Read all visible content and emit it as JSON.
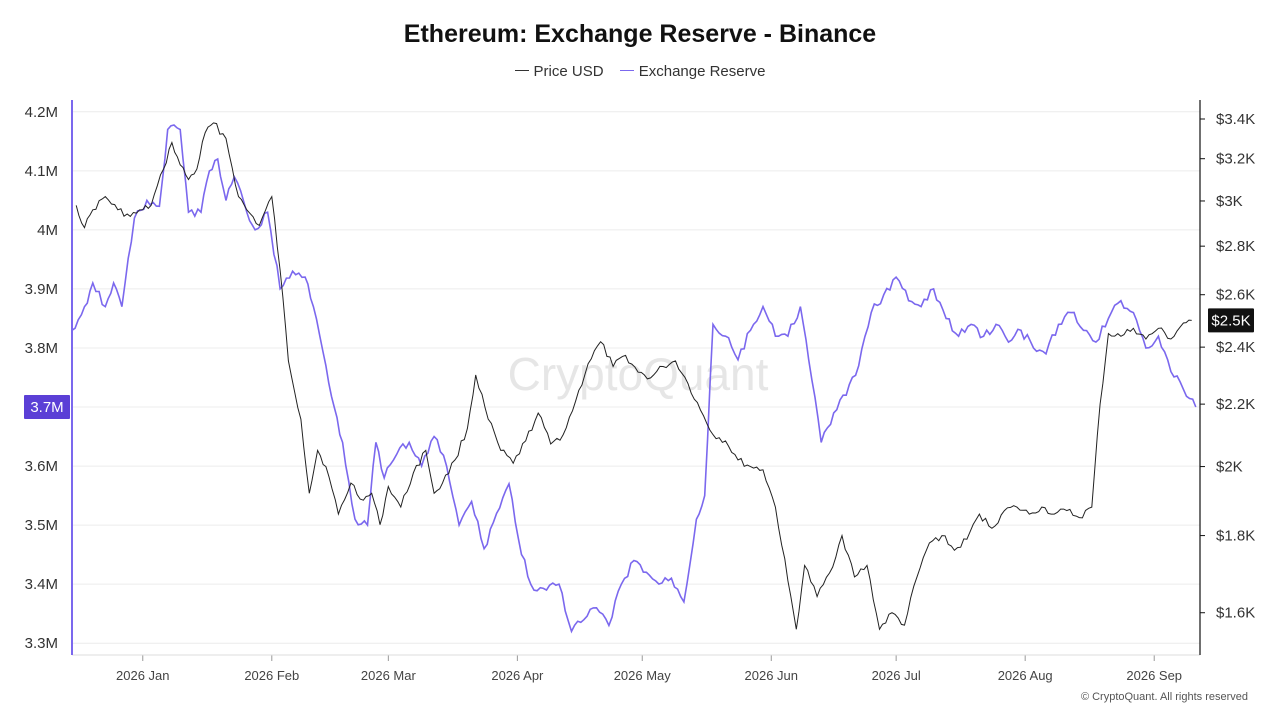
{
  "chart_data": {
    "type": "line",
    "title": "Ethereum: Exchange Reserve - Binance",
    "legend_position": "top-center",
    "grid": true,
    "x_ticks": [
      "2026 Jan",
      "2026 Feb",
      "2026 Mar",
      "2026 Apr",
      "2026 May",
      "2026 Jun",
      "2026 Jul",
      "2026 Aug",
      "2026 Sep"
    ],
    "x_range": [
      "2025-12-15",
      "2026-09-12"
    ],
    "left_axis": {
      "ticks": [
        "4.2M",
        "4.1M",
        "4M",
        "3.9M",
        "3.8M",
        "3.7M",
        "3.6M",
        "3.5M",
        "3.4M",
        "3.3M"
      ],
      "tick_values": [
        4200000,
        4100000,
        4000000,
        3900000,
        3800000,
        3700000,
        3600000,
        3500000,
        3400000,
        3300000
      ],
      "range": [
        3280000,
        4220000
      ],
      "current_label": "3.7M",
      "current_value": 3700000
    },
    "right_axis": {
      "ticks": [
        "$3.4K",
        "$3.2K",
        "$3K",
        "$2.8K",
        "$2.6K",
        "$2.4K",
        "$2.2K",
        "$2K",
        "$1.8K",
        "$1.6K"
      ],
      "tick_values": [
        3400,
        3200,
        3000,
        2800,
        2600,
        2400,
        2200,
        2000,
        1800,
        1600
      ],
      "scale": "log",
      "range": [
        1500,
        3500
      ],
      "current_label": "$2.5K",
      "current_value": 2500
    },
    "series": [
      {
        "name": "Price USD",
        "axis": "right",
        "color": "#222222",
        "points": [
          [
            "2025-12-16",
            2980
          ],
          [
            "2025-12-18",
            2880
          ],
          [
            "2025-12-20",
            2960
          ],
          [
            "2025-12-23",
            3020
          ],
          [
            "2025-12-26",
            2960
          ],
          [
            "2025-12-29",
            2930
          ],
          [
            "2026-01-01",
            2960
          ],
          [
            "2026-01-03",
            2980
          ],
          [
            "2026-01-06",
            3150
          ],
          [
            "2026-01-08",
            3280
          ],
          [
            "2026-01-10",
            3170
          ],
          [
            "2026-01-12",
            3100
          ],
          [
            "2026-01-14",
            3150
          ],
          [
            "2026-01-16",
            3330
          ],
          [
            "2026-01-18",
            3380
          ],
          [
            "2026-01-21",
            3300
          ],
          [
            "2026-01-24",
            3020
          ],
          [
            "2026-01-26",
            2960
          ],
          [
            "2026-01-29",
            2890
          ],
          [
            "2026-02-01",
            3020
          ],
          [
            "2026-02-03",
            2700
          ],
          [
            "2026-02-05",
            2350
          ],
          [
            "2026-02-08",
            2150
          ],
          [
            "2026-02-10",
            1920
          ],
          [
            "2026-02-12",
            2050
          ],
          [
            "2026-02-14",
            2000
          ],
          [
            "2026-02-17",
            1860
          ],
          [
            "2026-02-20",
            1950
          ],
          [
            "2026-02-23",
            1900
          ],
          [
            "2026-02-25",
            1920
          ],
          [
            "2026-02-27",
            1830
          ],
          [
            "2026-03-01",
            1940
          ],
          [
            "2026-03-04",
            1880
          ],
          [
            "2026-03-07",
            1980
          ],
          [
            "2026-03-10",
            2050
          ],
          [
            "2026-03-12",
            1920
          ],
          [
            "2026-03-14",
            1950
          ],
          [
            "2026-03-17",
            2020
          ],
          [
            "2026-03-20",
            2120
          ],
          [
            "2026-03-22",
            2300
          ],
          [
            "2026-03-25",
            2150
          ],
          [
            "2026-03-28",
            2050
          ],
          [
            "2026-03-31",
            2010
          ],
          [
            "2026-04-03",
            2080
          ],
          [
            "2026-04-06",
            2170
          ],
          [
            "2026-04-09",
            2070
          ],
          [
            "2026-04-12",
            2100
          ],
          [
            "2026-04-15",
            2210
          ],
          [
            "2026-04-18",
            2340
          ],
          [
            "2026-04-21",
            2420
          ],
          [
            "2026-04-24",
            2330
          ],
          [
            "2026-04-27",
            2370
          ],
          [
            "2026-04-30",
            2310
          ],
          [
            "2026-05-03",
            2290
          ],
          [
            "2026-05-06",
            2330
          ],
          [
            "2026-05-09",
            2350
          ],
          [
            "2026-05-12",
            2270
          ],
          [
            "2026-05-15",
            2180
          ],
          [
            "2026-05-18",
            2100
          ],
          [
            "2026-05-21",
            2080
          ],
          [
            "2026-05-24",
            2020
          ],
          [
            "2026-05-27",
            2000
          ],
          [
            "2026-05-30",
            1990
          ],
          [
            "2026-06-02",
            1880
          ],
          [
            "2026-06-05",
            1680
          ],
          [
            "2026-06-07",
            1560
          ],
          [
            "2026-06-09",
            1720
          ],
          [
            "2026-06-12",
            1640
          ],
          [
            "2026-06-15",
            1700
          ],
          [
            "2026-06-18",
            1800
          ],
          [
            "2026-06-21",
            1690
          ],
          [
            "2026-06-24",
            1720
          ],
          [
            "2026-06-27",
            1560
          ],
          [
            "2026-06-30",
            1600
          ],
          [
            "2026-07-03",
            1570
          ],
          [
            "2026-07-06",
            1690
          ],
          [
            "2026-07-09",
            1780
          ],
          [
            "2026-07-12",
            1800
          ],
          [
            "2026-07-15",
            1760
          ],
          [
            "2026-07-18",
            1790
          ],
          [
            "2026-07-21",
            1860
          ],
          [
            "2026-07-24",
            1820
          ],
          [
            "2026-07-27",
            1870
          ],
          [
            "2026-07-30",
            1880
          ],
          [
            "2026-08-02",
            1860
          ],
          [
            "2026-08-05",
            1880
          ],
          [
            "2026-08-08",
            1860
          ],
          [
            "2026-08-11",
            1870
          ],
          [
            "2026-08-14",
            1850
          ],
          [
            "2026-08-17",
            1880
          ],
          [
            "2026-08-19",
            2200
          ],
          [
            "2026-08-21",
            2450
          ],
          [
            "2026-08-24",
            2440
          ],
          [
            "2026-08-27",
            2470
          ],
          [
            "2026-08-30",
            2430
          ],
          [
            "2026-09-02",
            2470
          ],
          [
            "2026-09-05",
            2430
          ],
          [
            "2026-09-08",
            2490
          ],
          [
            "2026-09-10",
            2500
          ]
        ]
      },
      {
        "name": "Exchange Reserve",
        "axis": "left",
        "color": "#7b68ee",
        "points": [
          [
            "2025-12-15",
            3830000
          ],
          [
            "2025-12-18",
            3870000
          ],
          [
            "2025-12-20",
            3910000
          ],
          [
            "2025-12-23",
            3870000
          ],
          [
            "2025-12-25",
            3910000
          ],
          [
            "2025-12-27",
            3870000
          ],
          [
            "2025-12-30",
            4020000
          ],
          [
            "2026-01-02",
            4050000
          ],
          [
            "2026-01-05",
            4040000
          ],
          [
            "2026-01-07",
            4170000
          ],
          [
            "2026-01-10",
            4170000
          ],
          [
            "2026-01-12",
            4030000
          ],
          [
            "2026-01-15",
            4030000
          ],
          [
            "2026-01-17",
            4100000
          ],
          [
            "2026-01-19",
            4120000
          ],
          [
            "2026-01-21",
            4050000
          ],
          [
            "2026-01-23",
            4090000
          ],
          [
            "2026-01-26",
            4030000
          ],
          [
            "2026-01-28",
            4000000
          ],
          [
            "2026-01-31",
            4030000
          ],
          [
            "2026-02-03",
            3900000
          ],
          [
            "2026-02-06",
            3930000
          ],
          [
            "2026-02-09",
            3920000
          ],
          [
            "2026-02-11",
            3870000
          ],
          [
            "2026-02-14",
            3770000
          ],
          [
            "2026-02-16",
            3700000
          ],
          [
            "2026-02-18",
            3640000
          ],
          [
            "2026-02-21",
            3510000
          ],
          [
            "2026-02-24",
            3500000
          ],
          [
            "2026-02-26",
            3640000
          ],
          [
            "2026-02-28",
            3580000
          ],
          [
            "2026-03-03",
            3620000
          ],
          [
            "2026-03-06",
            3640000
          ],
          [
            "2026-03-09",
            3600000
          ],
          [
            "2026-03-12",
            3650000
          ],
          [
            "2026-03-15",
            3600000
          ],
          [
            "2026-03-18",
            3500000
          ],
          [
            "2026-03-21",
            3540000
          ],
          [
            "2026-03-24",
            3460000
          ],
          [
            "2026-03-27",
            3520000
          ],
          [
            "2026-03-30",
            3570000
          ],
          [
            "2026-04-02",
            3450000
          ],
          [
            "2026-04-05",
            3390000
          ],
          [
            "2026-04-08",
            3390000
          ],
          [
            "2026-04-11",
            3400000
          ],
          [
            "2026-04-14",
            3320000
          ],
          [
            "2026-04-17",
            3340000
          ],
          [
            "2026-04-20",
            3360000
          ],
          [
            "2026-04-23",
            3330000
          ],
          [
            "2026-04-26",
            3400000
          ],
          [
            "2026-04-29",
            3440000
          ],
          [
            "2026-05-02",
            3420000
          ],
          [
            "2026-05-05",
            3400000
          ],
          [
            "2026-05-08",
            3410000
          ],
          [
            "2026-05-11",
            3370000
          ],
          [
            "2026-05-14",
            3510000
          ],
          [
            "2026-05-16",
            3550000
          ],
          [
            "2026-05-18",
            3840000
          ],
          [
            "2026-05-21",
            3820000
          ],
          [
            "2026-05-24",
            3780000
          ],
          [
            "2026-05-27",
            3830000
          ],
          [
            "2026-05-30",
            3870000
          ],
          [
            "2026-06-02",
            3820000
          ],
          [
            "2026-06-05",
            3820000
          ],
          [
            "2026-06-08",
            3870000
          ],
          [
            "2026-06-10",
            3780000
          ],
          [
            "2026-06-13",
            3640000
          ],
          [
            "2026-06-16",
            3690000
          ],
          [
            "2026-06-19",
            3720000
          ],
          [
            "2026-06-22",
            3770000
          ],
          [
            "2026-06-25",
            3860000
          ],
          [
            "2026-06-28",
            3890000
          ],
          [
            "2026-07-01",
            3920000
          ],
          [
            "2026-07-04",
            3880000
          ],
          [
            "2026-07-07",
            3870000
          ],
          [
            "2026-07-10",
            3900000
          ],
          [
            "2026-07-13",
            3850000
          ],
          [
            "2026-07-16",
            3820000
          ],
          [
            "2026-07-19",
            3840000
          ],
          [
            "2026-07-22",
            3820000
          ],
          [
            "2026-07-25",
            3840000
          ],
          [
            "2026-07-28",
            3810000
          ],
          [
            "2026-07-31",
            3830000
          ],
          [
            "2026-08-03",
            3800000
          ],
          [
            "2026-08-06",
            3790000
          ],
          [
            "2026-08-09",
            3840000
          ],
          [
            "2026-08-12",
            3860000
          ],
          [
            "2026-08-15",
            3830000
          ],
          [
            "2026-08-18",
            3810000
          ],
          [
            "2026-08-21",
            3850000
          ],
          [
            "2026-08-24",
            3880000
          ],
          [
            "2026-08-27",
            3860000
          ],
          [
            "2026-08-30",
            3800000
          ],
          [
            "2026-09-02",
            3820000
          ],
          [
            "2026-09-05",
            3760000
          ],
          [
            "2026-09-08",
            3730000
          ],
          [
            "2026-09-11",
            3700000
          ]
        ]
      }
    ],
    "watermark": "CryptoQuant"
  },
  "footer": {
    "copyright": "© CryptoQuant. All rights reserved"
  },
  "colors": {
    "price": "#222222",
    "reserve": "#7b68ee",
    "grid": "#ececec",
    "badge_left": "#5b3fd6",
    "badge_right": "#111111"
  }
}
